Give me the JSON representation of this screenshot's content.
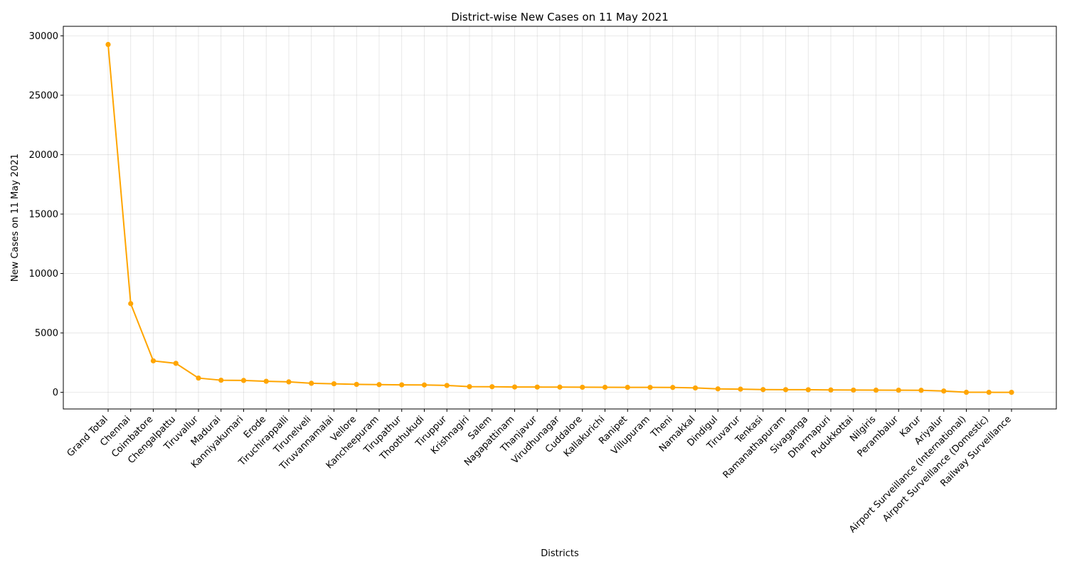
{
  "chart_data": {
    "type": "line",
    "title": "District-wise New Cases on 11 May 2021",
    "xlabel": "Districts",
    "ylabel": "New Cases on 11 May 2021",
    "ylim": [
      -1400,
      30800
    ],
    "yticks": [
      0,
      5000,
      10000,
      15000,
      20000,
      25000,
      30000
    ],
    "grid": true,
    "line_color": "#FFA500",
    "categories": [
      "Grand Total",
      "Chennai",
      "Coimbatore",
      "Chengalpattu",
      "Tiruvallur",
      "Madurai",
      "Kanniyakumari",
      "Erode",
      "Tiruchirappalli",
      "Tirunelveli",
      "Tiruvannamalai",
      "Vellore",
      "Kancheepuram",
      "Tirupathur",
      "Thoothukudi",
      "Tiruppur",
      "Krishnagiri",
      "Salem",
      "Nagapattinam",
      "Thanjavur",
      "Virudhunagar",
      "Cuddalore",
      "Kallakurichi",
      "Ranipet",
      "Villupuram",
      "Theni",
      "Namakkal",
      "Dindigul",
      "Tiruvarur",
      "Tenkasi",
      "Ramanathapuram",
      "Sivaganga",
      "Dharmapuri",
      "Pudukkottai",
      "Nilgiris",
      "Perambalur",
      "Karur",
      "Ariyalur",
      "Airport Surveillance (International)",
      "Airport Surveillance (Domestic)",
      "Railway Surveillance"
    ],
    "values": [
      29272,
      7466,
      2650,
      2440,
      1200,
      1020,
      1000,
      930,
      880,
      760,
      720,
      670,
      650,
      630,
      620,
      580,
      480,
      470,
      450,
      445,
      440,
      430,
      425,
      420,
      415,
      410,
      370,
      290,
      270,
      230,
      225,
      220,
      200,
      190,
      185,
      180,
      170,
      110,
      5,
      3,
      0
    ]
  }
}
